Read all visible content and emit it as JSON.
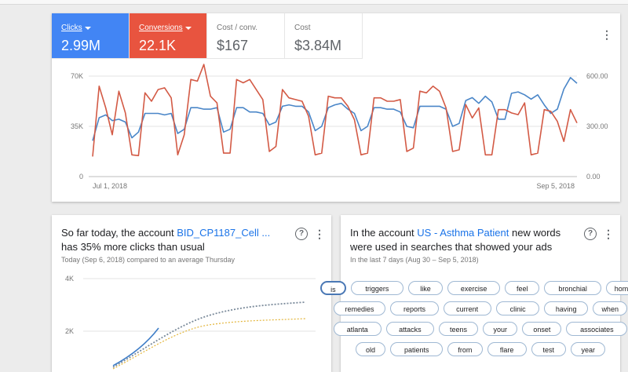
{
  "metrics": [
    {
      "label": "Clicks",
      "value": "2.99M",
      "selected": true,
      "color": "#4285f4"
    },
    {
      "label": "Conversions",
      "value": "22.1K",
      "selected": true,
      "color": "#e8543f"
    },
    {
      "label": "Cost / conv.",
      "value": "$167",
      "selected": false
    },
    {
      "label": "Cost",
      "value": "$3.84M",
      "selected": false
    }
  ],
  "chart_data": {
    "type": "line",
    "x_start_label": "Jul 1, 2018",
    "x_end_label": "Sep 5, 2018",
    "left_axis": {
      "ticks": [
        "70K",
        "35K",
        "0"
      ],
      "range": [
        0,
        70000
      ]
    },
    "right_axis": {
      "ticks": [
        "600.00",
        "300.00",
        "0.00"
      ],
      "range": [
        0,
        600
      ]
    },
    "grid": true,
    "series": [
      {
        "name": "Clicks",
        "axis": "left",
        "color": "#4a86c8",
        "values": [
          25000,
          41000,
          43000,
          39000,
          40000,
          38000,
          27000,
          31000,
          44000,
          44000,
          44000,
          43000,
          44000,
          30000,
          33000,
          48000,
          48000,
          47000,
          47000,
          48000,
          31000,
          33000,
          48000,
          48000,
          45000,
          45000,
          44000,
          36000,
          38000,
          49000,
          50000,
          49000,
          49000,
          45000,
          32000,
          35000,
          48000,
          50000,
          51000,
          47000,
          44000,
          32000,
          35000,
          48000,
          48000,
          47000,
          47000,
          45000,
          35000,
          34000,
          49000,
          49000,
          49000,
          49000,
          47000,
          35000,
          37000,
          53000,
          55000,
          51000,
          56000,
          52000,
          40000,
          40000,
          58000,
          59000,
          57000,
          54000,
          57000,
          50000,
          44000,
          47000,
          61000,
          69000,
          65000
        ]
      },
      {
        "name": "Conversions",
        "axis": "right",
        "color": "#d35a45",
        "values": [
          120,
          540,
          410,
          250,
          510,
          380,
          130,
          125,
          500,
          450,
          520,
          530,
          470,
          130,
          250,
          580,
          570,
          670,
          480,
          440,
          140,
          140,
          580,
          560,
          580,
          520,
          460,
          150,
          180,
          520,
          470,
          460,
          450,
          360,
          130,
          140,
          480,
          470,
          470,
          420,
          340,
          130,
          140,
          470,
          470,
          450,
          450,
          460,
          150,
          170,
          510,
          500,
          540,
          510,
          410,
          150,
          160,
          430,
          350,
          410,
          130,
          130,
          400,
          400,
          380,
          370,
          440,
          130,
          140,
          400,
          390,
          330,
          210,
          400,
          320
        ]
      }
    ]
  },
  "insight_left": {
    "title_pre": "So far today, the account",
    "account": "BID_CP1187_Cell ...",
    "title_post": "has 35% more clicks than usual",
    "subtitle": "Today (Sep 6, 2018) compared to an average Thursday",
    "chart_data": {
      "type": "line",
      "y_ticks": [
        "4K",
        "2K"
      ],
      "ylim": [
        0,
        4000
      ]
    }
  },
  "insight_right": {
    "title_pre": "In the account",
    "account": "US - Asthma Patient",
    "title_post": "new words were used in searches that showed your ads",
    "subtitle": "In the last 7 days (Aug 30 – Sep 5, 2018)",
    "words": [
      "is",
      "triggers",
      "like",
      "exercise",
      "feel",
      "bronchial",
      "home",
      "remedies",
      "reports",
      "current",
      "clinic",
      "having",
      "when",
      "atlanta",
      "attacks",
      "teens",
      "your",
      "onset",
      "associates",
      "old",
      "patients",
      "from",
      "flare",
      "test",
      "year"
    ]
  },
  "icons": {
    "more": "more-vert-icon",
    "help": "help-circle-icon",
    "dropdown": "caret-down-icon"
  }
}
